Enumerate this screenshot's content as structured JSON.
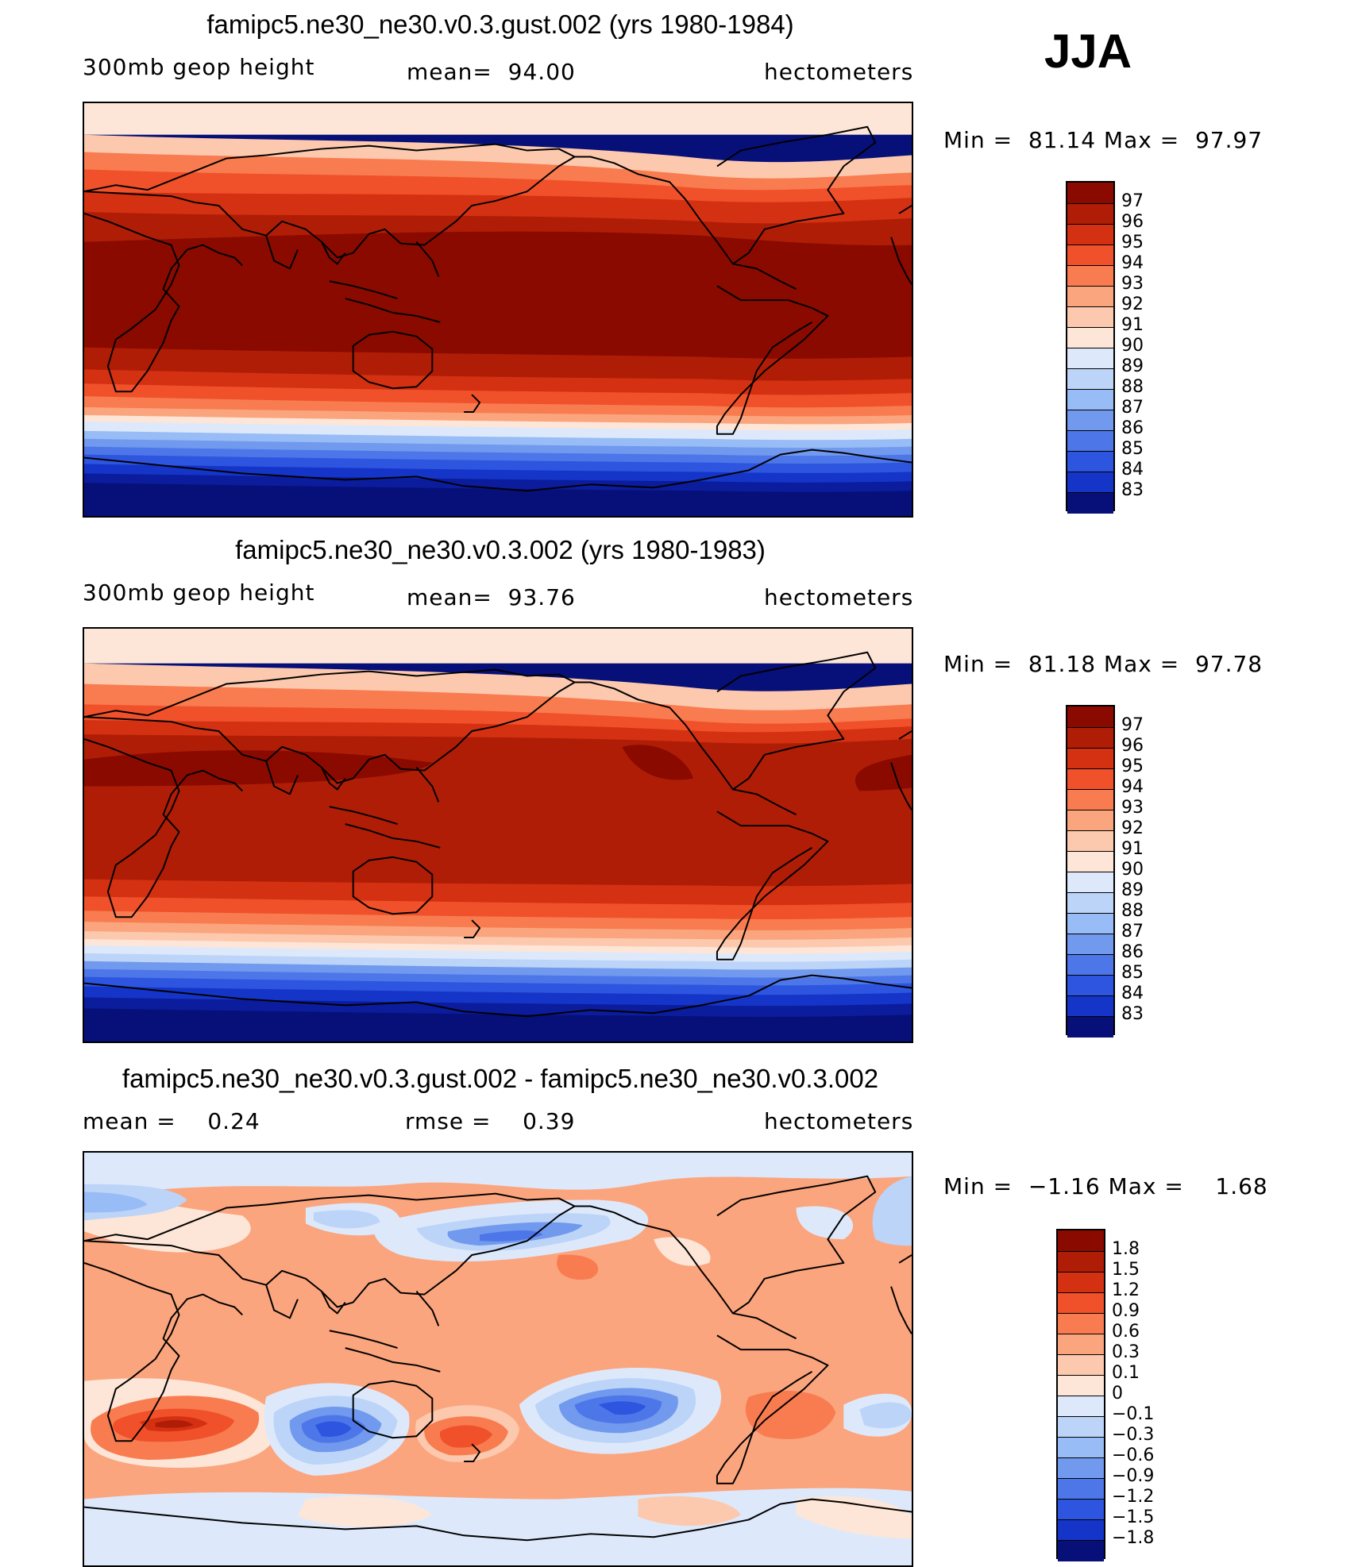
{
  "season": "JJA",
  "colors": {
    "warm": [
      "#fde6d7",
      "#fcc9ae",
      "#fba57e",
      "#f87c50",
      "#f0512a",
      "#d43112",
      "#b01d06",
      "#8a0a00"
    ],
    "cool": [
      "#dde9fb",
      "#bcd4f8",
      "#98bcf5",
      "#7199ee",
      "#4d77e9",
      "#2d55e0",
      "#1535c8",
      "#0b1c9c",
      "#061078"
    ]
  },
  "panels": [
    {
      "title": "famipc5.ne30_ne30.v0.3.gust.002 (yrs 1980-1984)",
      "variable": "300mb geop height",
      "stat1": "mean=  94.00",
      "units": "hectometers",
      "minmax": "Min =  81.14 Max =  97.97",
      "colorbar": {
        "labels": [
          "97",
          "96",
          "95",
          "94",
          "93",
          "92",
          "91",
          "90",
          "89",
          "88",
          "87",
          "86",
          "85",
          "84",
          "83"
        ],
        "colors": [
          "#8a0a00",
          "#b01d06",
          "#d43112",
          "#f0512a",
          "#f87c50",
          "#fba57e",
          "#fcc9ae",
          "#fde6d7",
          "#dde9fb",
          "#bcd4f8",
          "#98bcf5",
          "#7199ee",
          "#4d77e9",
          "#2d55e0",
          "#1535c8",
          "#061078"
        ]
      }
    },
    {
      "title": "famipc5.ne30_ne30.v0.3.002 (yrs 1980-1983)",
      "variable": "300mb geop height",
      "stat1": "mean=  93.76",
      "units": "hectometers",
      "minmax": "Min =  81.18 Max =  97.78",
      "colorbar": {
        "labels": [
          "97",
          "96",
          "95",
          "94",
          "93",
          "92",
          "91",
          "90",
          "89",
          "88",
          "87",
          "86",
          "85",
          "84",
          "83"
        ],
        "colors": [
          "#8a0a00",
          "#b01d06",
          "#d43112",
          "#f0512a",
          "#f87c50",
          "#fba57e",
          "#fcc9ae",
          "#fde6d7",
          "#dde9fb",
          "#bcd4f8",
          "#98bcf5",
          "#7199ee",
          "#4d77e9",
          "#2d55e0",
          "#1535c8",
          "#061078"
        ]
      }
    },
    {
      "title": "famipc5.ne30_ne30.v0.3.gust.002 - famipc5.ne30_ne30.v0.3.002",
      "stat1": "mean =    0.24",
      "stat2": "rmse =    0.39",
      "units": "hectometers",
      "minmax": "Min =  −1.16 Max =    1.68",
      "colorbar": {
        "labels": [
          "1.8",
          "1.5",
          "1.2",
          "0.9",
          "0.6",
          "0.3",
          "0.1",
          "0",
          "−0.1",
          "−0.3",
          "−0.6",
          "−0.9",
          "−1.2",
          "−1.5",
          "−1.8"
        ],
        "colors": [
          "#8a0a00",
          "#b01d06",
          "#d43112",
          "#f0512a",
          "#f87c50",
          "#fba57e",
          "#fcc9ae",
          "#fde6d7",
          "#dde9fb",
          "#bcd4f8",
          "#98bcf5",
          "#7199ee",
          "#4d77e9",
          "#2d55e0",
          "#1535c8",
          "#061078"
        ]
      }
    }
  ]
}
